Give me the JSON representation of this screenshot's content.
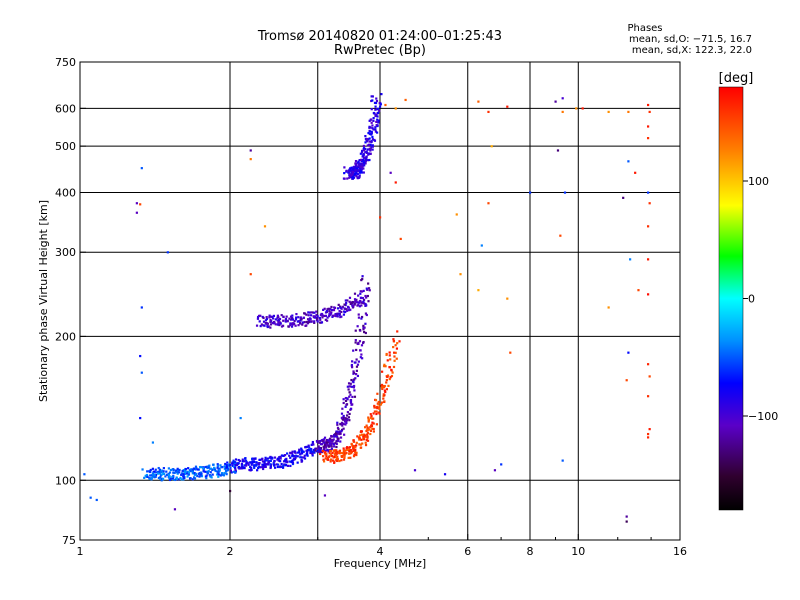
{
  "chart_data": {
    "type": "scatter",
    "title_line1": "Tromsø 20140820 01:24:00–01:25:43",
    "title_line2": "RwPretec (Bp)",
    "stats": {
      "heading": "Phases",
      "line1": "mean, sd,O: −71.5, 16.7",
      "line2": "mean, sd,X: 122.3, 22.0"
    },
    "xlabel": "Frequency [MHz]",
    "ylabel": "Stationary phase Virtual Height [km]",
    "x_scale": "log",
    "y_scale": "log",
    "xlim": [
      1,
      16
    ],
    "ylim": [
      75,
      750
    ],
    "x_ticks": [
      1,
      2,
      4,
      6,
      8,
      10,
      16
    ],
    "x_ticklabels": [
      "1",
      "2",
      "4",
      "6",
      "8",
      "10",
      "16"
    ],
    "y_ticks": [
      75,
      100,
      200,
      300,
      400,
      500,
      600,
      750
    ],
    "y_ticklabels": [
      "75",
      "100",
      "200",
      "300",
      "400",
      "500",
      "600",
      "750"
    ],
    "x_gridlines": [
      2,
      3,
      4,
      6,
      8,
      10
    ],
    "y_gridlines": [
      100,
      200,
      300,
      400,
      500,
      600
    ],
    "grid": true,
    "colorbar": {
      "label": "[deg]",
      "range": [
        -180,
        180
      ],
      "ticks": [
        100,
        0,
        -100
      ],
      "ticklabels": [
        "100",
        "0",
        "−100"
      ],
      "colormap": "rainbow"
    },
    "traces": [
      {
        "freq_start": 1.35,
        "freq_end": 2.05,
        "height_start": 103,
        "height_end": 107,
        "phase": -50
      },
      {
        "freq_start": 2.05,
        "freq_end": 3.0,
        "height_start": 108,
        "height_end": 118,
        "phase": -80
      },
      {
        "freq_start": 3.0,
        "freq_end": 3.75,
        "height_start": 118,
        "height_end": 260,
        "phase": -110
      },
      {
        "freq_start": 3.1,
        "freq_end": 4.3,
        "height_start": 112,
        "height_end": 200,
        "phase": 155
      },
      {
        "freq_start": 2.3,
        "freq_end": 3.75,
        "height_start": 215,
        "height_end": 245,
        "phase": -105
      },
      {
        "freq_start": 3.45,
        "freq_end": 3.95,
        "height_start": 440,
        "height_end": 640,
        "phase": -90
      }
    ],
    "scattered_points": [
      {
        "x": 1.02,
        "y": 103,
        "phase": -50
      },
      {
        "x": 1.05,
        "y": 92,
        "phase": -50
      },
      {
        "x": 1.08,
        "y": 91,
        "phase": -50
      },
      {
        "x": 1.3,
        "y": 380,
        "phase": -110
      },
      {
        "x": 1.32,
        "y": 378,
        "phase": 150
      },
      {
        "x": 1.3,
        "y": 363,
        "phase": -110
      },
      {
        "x": 1.33,
        "y": 450,
        "phase": -50
      },
      {
        "x": 1.33,
        "y": 230,
        "phase": -60
      },
      {
        "x": 1.32,
        "y": 182,
        "phase": -70
      },
      {
        "x": 1.33,
        "y": 168,
        "phase": -50
      },
      {
        "x": 1.32,
        "y": 135,
        "phase": -70
      },
      {
        "x": 1.4,
        "y": 120,
        "phase": -40
      },
      {
        "x": 1.5,
        "y": 300,
        "phase": -60
      },
      {
        "x": 1.55,
        "y": 87,
        "phase": -110
      },
      {
        "x": 2.0,
        "y": 95,
        "phase": -150
      },
      {
        "x": 2.2,
        "y": 490,
        "phase": -120
      },
      {
        "x": 2.2,
        "y": 470,
        "phase": 130
      },
      {
        "x": 2.35,
        "y": 340,
        "phase": 120
      },
      {
        "x": 2.2,
        "y": 270,
        "phase": 150
      },
      {
        "x": 2.1,
        "y": 135,
        "phase": -40
      },
      {
        "x": 3.1,
        "y": 93,
        "phase": -110
      },
      {
        "x": 4.0,
        "y": 355,
        "phase": 160
      },
      {
        "x": 4.2,
        "y": 440,
        "phase": -110
      },
      {
        "x": 4.3,
        "y": 420,
        "phase": 170
      },
      {
        "x": 4.4,
        "y": 320,
        "phase": 150
      },
      {
        "x": 4.1,
        "y": 610,
        "phase": 140
      },
      {
        "x": 4.3,
        "y": 600,
        "phase": 120
      },
      {
        "x": 4.5,
        "y": 625,
        "phase": 140
      },
      {
        "x": 4.7,
        "y": 105,
        "phase": -100
      },
      {
        "x": 5.4,
        "y": 103,
        "phase": -80
      },
      {
        "x": 5.7,
        "y": 360,
        "phase": 120
      },
      {
        "x": 5.8,
        "y": 270,
        "phase": 120
      },
      {
        "x": 6.3,
        "y": 620,
        "phase": 140
      },
      {
        "x": 6.4,
        "y": 310,
        "phase": -40
      },
      {
        "x": 6.3,
        "y": 250,
        "phase": 110
      },
      {
        "x": 6.6,
        "y": 590,
        "phase": 160
      },
      {
        "x": 6.7,
        "y": 500,
        "phase": 110
      },
      {
        "x": 6.6,
        "y": 380,
        "phase": 150
      },
      {
        "x": 6.8,
        "y": 105,
        "phase": -110
      },
      {
        "x": 7.0,
        "y": 108,
        "phase": -60
      },
      {
        "x": 7.2,
        "y": 605,
        "phase": 170
      },
      {
        "x": 7.2,
        "y": 240,
        "phase": 120
      },
      {
        "x": 7.3,
        "y": 185,
        "phase": 150
      },
      {
        "x": 8.0,
        "y": 400,
        "phase": -60
      },
      {
        "x": 9.0,
        "y": 620,
        "phase": -120
      },
      {
        "x": 9.1,
        "y": 490,
        "phase": -130
      },
      {
        "x": 9.3,
        "y": 630,
        "phase": -100
      },
      {
        "x": 9.3,
        "y": 590,
        "phase": 130
      },
      {
        "x": 9.3,
        "y": 110,
        "phase": -50
      },
      {
        "x": 9.4,
        "y": 400,
        "phase": -60
      },
      {
        "x": 9.2,
        "y": 325,
        "phase": 150
      },
      {
        "x": 9.9,
        "y": 600,
        "phase": 120
      },
      {
        "x": 10.2,
        "y": 600,
        "phase": 170
      },
      {
        "x": 11.5,
        "y": 590,
        "phase": 120
      },
      {
        "x": 11.5,
        "y": 230,
        "phase": 120
      },
      {
        "x": 12.3,
        "y": 390,
        "phase": -130
      },
      {
        "x": 12.6,
        "y": 590,
        "phase": 130
      },
      {
        "x": 12.6,
        "y": 465,
        "phase": -50
      },
      {
        "x": 12.7,
        "y": 290,
        "phase": -40
      },
      {
        "x": 12.6,
        "y": 185,
        "phase": -70
      },
      {
        "x": 12.5,
        "y": 162,
        "phase": 150
      },
      {
        "x": 12.5,
        "y": 84,
        "phase": -120
      },
      {
        "x": 12.5,
        "y": 82,
        "phase": -140
      },
      {
        "x": 13.0,
        "y": 440,
        "phase": 170
      },
      {
        "x": 13.2,
        "y": 250,
        "phase": 150
      },
      {
        "x": 13.8,
        "y": 610,
        "phase": 170
      },
      {
        "x": 13.9,
        "y": 590,
        "phase": 160
      },
      {
        "x": 13.8,
        "y": 550,
        "phase": 170
      },
      {
        "x": 13.8,
        "y": 520,
        "phase": 160
      },
      {
        "x": 13.8,
        "y": 400,
        "phase": -60
      },
      {
        "x": 13.9,
        "y": 380,
        "phase": 160
      },
      {
        "x": 13.8,
        "y": 340,
        "phase": 160
      },
      {
        "x": 13.8,
        "y": 290,
        "phase": 170
      },
      {
        "x": 13.8,
        "y": 245,
        "phase": 175
      },
      {
        "x": 13.8,
        "y": 175,
        "phase": 165
      },
      {
        "x": 13.9,
        "y": 165,
        "phase": 150
      },
      {
        "x": 13.8,
        "y": 150,
        "phase": 160
      },
      {
        "x": 13.9,
        "y": 128,
        "phase": 170
      },
      {
        "x": 13.8,
        "y": 125,
        "phase": 160
      },
      {
        "x": 13.8,
        "y": 123,
        "phase": 165
      }
    ]
  }
}
